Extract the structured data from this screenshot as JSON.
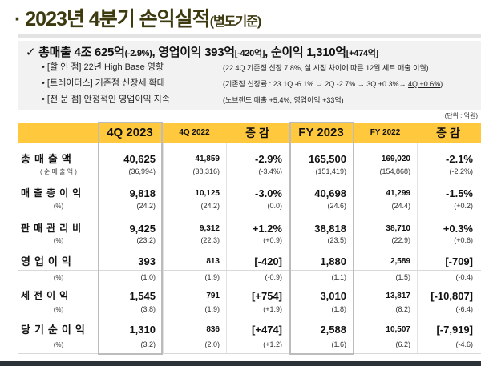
{
  "title": {
    "main": "· 2023년 4분기 손익실적",
    "sub": "(별도기준)"
  },
  "summary": {
    "check": "✓",
    "headline": [
      {
        "t": "총매출 4조 625억",
        "s": "(-2.9%)"
      },
      {
        "t": ", 영업이익 393억",
        "s": "[-420억]"
      },
      {
        "t": ", 순이익 1,310억",
        "s": "[+474억]"
      }
    ],
    "bullets": [
      {
        "label": "• [할  인  점]  22년 High Base 영향",
        "note": "(22.4Q 기존점 신장 7.8%, 설 시점 차이에 따른 12월 세트 매출 이월)"
      },
      {
        "label": "• [트레이더스]  기존점 신장세 확대",
        "note": "(기존점 신장률 : 23.1Q  -6.1% → 2Q  -2.7% → 3Q +0.3%→ ",
        "note_u": "4Q +0.6%",
        "note_end": ")"
      },
      {
        "label": "• [전  문  점]  안정적인 영업이익 지속",
        "note": "(노브랜드 매출 +5.4%, 영업이익 +33억)"
      }
    ]
  },
  "unit": "(단위 : 억원)",
  "colors": {
    "header": "#ffc83d",
    "title": "#3d3a10",
    "box": "#f2f2f2"
  },
  "table": {
    "headers": [
      "4Q 2023",
      "4Q 2022",
      "증  감",
      "FY 2023",
      "FY 2022",
      "증  감"
    ],
    "rows": [
      {
        "label": "총매출액",
        "sublabel": "( 순 매 출 액 )",
        "values": [
          "40,625",
          "41,859",
          "-2.9%",
          "165,500",
          "169,020",
          "-2.1%"
        ],
        "sub": [
          "(36,994)",
          "(38,316)",
          "(-3.4%)",
          "(151,419)",
          "(154,868)",
          "(-2.2%)"
        ]
      },
      {
        "label": "매출총이익",
        "sublabel": "(%)",
        "values": [
          "9,818",
          "10,125",
          "-3.0%",
          "40,698",
          "41,299",
          "-1.5%"
        ],
        "sub": [
          "(24.2)",
          "(24.2)",
          "(0.0)",
          "(24.6)",
          "(24.4)",
          "(+0.2)"
        ]
      },
      {
        "label": "판매관리비",
        "sublabel": "(%)",
        "values": [
          "9,425",
          "9,312",
          "+1.2%",
          "38,818",
          "38,710",
          "+0.3%"
        ],
        "sub": [
          "(23.2)",
          "(22.3)",
          "(+0.9)",
          "(23.5)",
          "(22.9)",
          "(+0.6)"
        ]
      },
      {
        "label": "영업이익",
        "sublabel": "(%)",
        "values": [
          "393",
          "813",
          "[-420]",
          "1,880",
          "2,589",
          "[-709]"
        ],
        "sub": [
          "(1.0)",
          "(1.9)",
          "(-0.9)",
          "(1.1)",
          "(1.5)",
          "(-0.4)"
        ]
      },
      {
        "label": "세전이익",
        "sublabel": "(%)",
        "values": [
          "1,545",
          "791",
          "[+754]",
          "3,010",
          "13,817",
          "[-10,807]"
        ],
        "sub": [
          "(3.8)",
          "(1.9)",
          "(+1.9)",
          "(1.8)",
          "(8.2)",
          "(-6.4)"
        ]
      },
      {
        "label": "당기순이익",
        "sublabel": "(%)",
        "values": [
          "1,310",
          "836",
          "[+474]",
          "2,588",
          "10,507",
          "[-7,919]"
        ],
        "sub": [
          "(3.2)",
          "(2.0)",
          "(+1.2)",
          "(1.6)",
          "(6.2)",
          "(-4.6)"
        ]
      }
    ]
  }
}
